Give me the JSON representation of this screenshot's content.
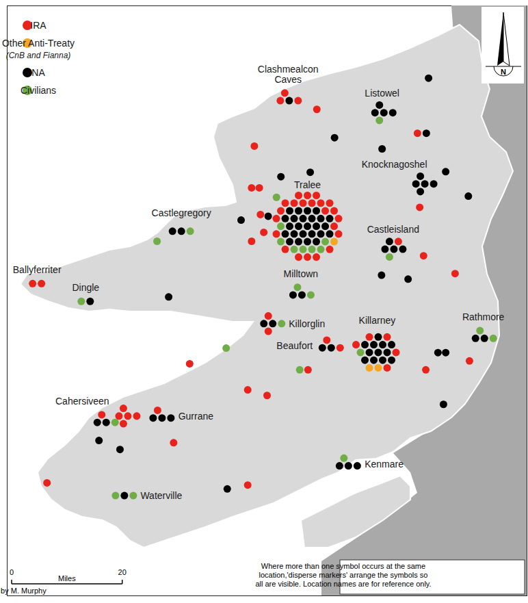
{
  "chart_data": {
    "type": "map",
    "xlim": [
      0,
      94
    ],
    "ylim": [
      0,
      106
    ],
    "tick_labels": false,
    "legend": "top-left",
    "series": [
      {
        "name": "IRA",
        "color": "#e8231b"
      },
      {
        "name": "Other Anti-Treaty",
        "sublabel": "(CnB and Fianna)",
        "color": "#f5a623"
      },
      {
        "name": "NA",
        "color": "#000000"
      },
      {
        "name": "Civilians",
        "color": "#70ad47"
      }
    ],
    "locations": [
      {
        "label": "Clashmealcon Caves",
        "x": 50.8,
        "y": 89.3,
        "counts": [
          3,
          0,
          1,
          0
        ]
      },
      {
        "label": null,
        "x": 56.0,
        "y": 87.4,
        "counts": [
          1,
          0,
          0,
          0
        ]
      },
      {
        "label": null,
        "x": 44.7,
        "y": 80.8,
        "counts": [
          1,
          0,
          0,
          0
        ]
      },
      {
        "label": null,
        "x": 59.2,
        "y": 82.3,
        "counts": [
          0,
          0,
          1,
          0
        ]
      },
      {
        "label": null,
        "x": 67.8,
        "y": 80.3,
        "counts": [
          0,
          0,
          1,
          0
        ]
      },
      {
        "label": null,
        "x": 76.2,
        "y": 93.0,
        "counts": [
          0,
          0,
          1,
          0
        ]
      },
      {
        "label": "Listowel",
        "x": 67.8,
        "y": 86.8,
        "counts": [
          0,
          0,
          4,
          1
        ]
      },
      {
        "label": null,
        "x": 75.0,
        "y": 83.1,
        "counts": [
          1,
          0,
          1,
          0
        ]
      },
      {
        "label": null,
        "x": 79.3,
        "y": 76.2,
        "counts": [
          0,
          0,
          1,
          0
        ]
      },
      {
        "label": null,
        "x": 83.4,
        "y": 71.8,
        "counts": [
          0,
          0,
          1,
          0
        ]
      },
      {
        "label": "Knocknagoshel",
        "x": 75.2,
        "y": 74.0,
        "counts": [
          0,
          0,
          5,
          0
        ]
      },
      {
        "label": null,
        "x": 74.6,
        "y": 69.8,
        "counts": [
          1,
          0,
          0,
          0
        ]
      },
      {
        "label": "Castleisland",
        "x": 69.8,
        "y": 62.5,
        "counts": [
          1,
          0,
          4,
          1
        ]
      },
      {
        "label": null,
        "x": 75.3,
        "y": 61.1,
        "counts": [
          1,
          0,
          0,
          0
        ]
      },
      {
        "label": null,
        "x": 81.0,
        "y": 57.9,
        "counts": [
          1,
          0,
          0,
          0
        ]
      },
      {
        "label": null,
        "x": 67.7,
        "y": 57.6,
        "counts": [
          0,
          0,
          1,
          0
        ]
      },
      {
        "label": null,
        "x": 72.5,
        "y": 56.9,
        "counts": [
          0,
          0,
          1,
          0
        ]
      },
      {
        "label": null,
        "x": 54.8,
        "y": 76.1,
        "counts": [
          0,
          0,
          1,
          0
        ]
      },
      {
        "label": null,
        "x": 49.5,
        "y": 75.3,
        "counts": [
          0,
          0,
          1,
          0
        ]
      },
      {
        "label": null,
        "x": 44.2,
        "y": 73.3,
        "counts": [
          1,
          0,
          0,
          0
        ]
      },
      {
        "label": null,
        "x": 45.6,
        "y": 73.3,
        "counts": [
          1,
          0,
          0,
          0
        ]
      },
      {
        "label": null,
        "x": 48.7,
        "y": 71.6,
        "counts": [
          0,
          0,
          0,
          1
        ]
      },
      {
        "label": null,
        "x": 42.3,
        "y": 67.5,
        "counts": [
          0,
          0,
          1,
          0
        ]
      },
      {
        "label": null,
        "x": 45.8,
        "y": 68.5,
        "counts": [
          1,
          0,
          0,
          0
        ]
      },
      {
        "label": null,
        "x": 47.2,
        "y": 68.2,
        "counts": [
          0,
          0,
          1,
          0
        ]
      },
      {
        "label": null,
        "x": 46.4,
        "y": 65.3,
        "counts": [
          1,
          0,
          0,
          0
        ]
      },
      {
        "label": null,
        "x": 44.2,
        "y": 63.7,
        "counts": [
          1,
          0,
          0,
          0
        ]
      },
      {
        "label": "Tralee",
        "x": 54.3,
        "y": 66.4,
        "counts": [
          22,
          1,
          25,
          7
        ]
      },
      {
        "label": "Castlegregory",
        "x": 31.5,
        "y": 65.5,
        "counts": [
          0,
          0,
          2,
          1
        ]
      },
      {
        "label": null,
        "x": 27.1,
        "y": 63.7,
        "counts": [
          0,
          0,
          0,
          1
        ]
      },
      {
        "label": "Ballyferriter",
        "x": 5.4,
        "y": 56.1,
        "counts": [
          2,
          0,
          0,
          0
        ]
      },
      {
        "label": "Dingle",
        "x": 14.2,
        "y": 52.9,
        "counts": [
          0,
          0,
          1,
          1
        ]
      },
      {
        "label": null,
        "x": 29.2,
        "y": 53.7,
        "counts": [
          0,
          0,
          1,
          0
        ]
      },
      {
        "label": "Milltown",
        "x": 53.1,
        "y": 54.4,
        "counts": [
          0,
          0,
          2,
          2
        ]
      },
      {
        "label": "Killorglin",
        "x": 47.7,
        "y": 48.9,
        "counts": [
          2,
          0,
          2,
          1
        ]
      },
      {
        "label": null,
        "x": 39.6,
        "y": 44.5,
        "counts": [
          0,
          0,
          0,
          1
        ]
      },
      {
        "label": "Beaufort",
        "x": 58.4,
        "y": 44.9,
        "counts": [
          2,
          0,
          2,
          0
        ]
      },
      {
        "label": "Killarney",
        "x": 66.9,
        "y": 43.8,
        "counts": [
          5,
          2,
          12,
          1
        ]
      },
      {
        "label": null,
        "x": 52.9,
        "y": 40.6,
        "counts": [
          0,
          0,
          0,
          1
        ]
      },
      {
        "label": null,
        "x": 54.4,
        "y": 40.6,
        "counts": [
          1,
          0,
          0,
          0
        ]
      },
      {
        "label": null,
        "x": 77.9,
        "y": 43.7,
        "counts": [
          0,
          0,
          1,
          0
        ]
      },
      {
        "label": null,
        "x": 79.3,
        "y": 43.7,
        "counts": [
          0,
          0,
          1,
          0
        ]
      },
      {
        "label": "Rathmore",
        "x": 86.1,
        "y": 46.6,
        "counts": [
          0,
          0,
          2,
          2
        ]
      },
      {
        "label": null,
        "x": 83.6,
        "y": 42.2,
        "counts": [
          1,
          0,
          0,
          0
        ]
      },
      {
        "label": null,
        "x": 75.7,
        "y": 40.6,
        "counts": [
          1,
          0,
          0,
          0
        ]
      },
      {
        "label": null,
        "x": 33.0,
        "y": 41.7,
        "counts": [
          1,
          0,
          0,
          0
        ]
      },
      {
        "label": null,
        "x": 43.5,
        "y": 37.0,
        "counts": [
          1,
          0,
          0,
          0
        ]
      },
      {
        "label": null,
        "x": 47.0,
        "y": 36.0,
        "counts": [
          1,
          0,
          0,
          0
        ]
      },
      {
        "label": null,
        "x": 78.9,
        "y": 34.4,
        "counts": [
          0,
          0,
          1,
          0
        ]
      },
      {
        "label": "Cahersiveen",
        "x": 17.7,
        "y": 31.5,
        "counts": [
          1,
          0,
          2,
          1
        ]
      },
      {
        "label": null,
        "x": 21.5,
        "y": 32.3,
        "counts": [
          5,
          0,
          0,
          0
        ]
      },
      {
        "label": "Gurrane",
        "x": 27.8,
        "y": 32.3,
        "counts": [
          1,
          0,
          3,
          0
        ]
      },
      {
        "label": null,
        "x": 30.1,
        "y": 27.5,
        "counts": [
          1,
          0,
          0,
          0
        ]
      },
      {
        "label": null,
        "x": 16.6,
        "y": 27.9,
        "counts": [
          0,
          0,
          1,
          0
        ]
      },
      {
        "label": null,
        "x": 20.4,
        "y": 26.3,
        "counts": [
          0,
          0,
          1,
          0
        ]
      },
      {
        "label": null,
        "x": 7.2,
        "y": 20.3,
        "counts": [
          1,
          0,
          0,
          0
        ]
      },
      {
        "label": "Waterville",
        "x": 21.2,
        "y": 18.0,
        "counts": [
          0,
          0,
          1,
          2
        ]
      },
      {
        "label": null,
        "x": 39.8,
        "y": 19.2,
        "counts": [
          0,
          0,
          1,
          0
        ]
      },
      {
        "label": null,
        "x": 43.5,
        "y": 19.9,
        "counts": [
          1,
          0,
          0,
          0
        ]
      },
      {
        "label": "Kenmare",
        "x": 61.5,
        "y": 23.7,
        "counts": [
          0,
          0,
          3,
          1
        ]
      }
    ],
    "scale_bar": {
      "label": "Miles",
      "ticks": [
        0,
        20
      ]
    },
    "north": "N",
    "note": "Where more than one symbol occurs at the same location,'disperse markers' arrange the symbols so all are visible. Location names are for reference only.",
    "credit": "Drawn by M. Murphy"
  }
}
